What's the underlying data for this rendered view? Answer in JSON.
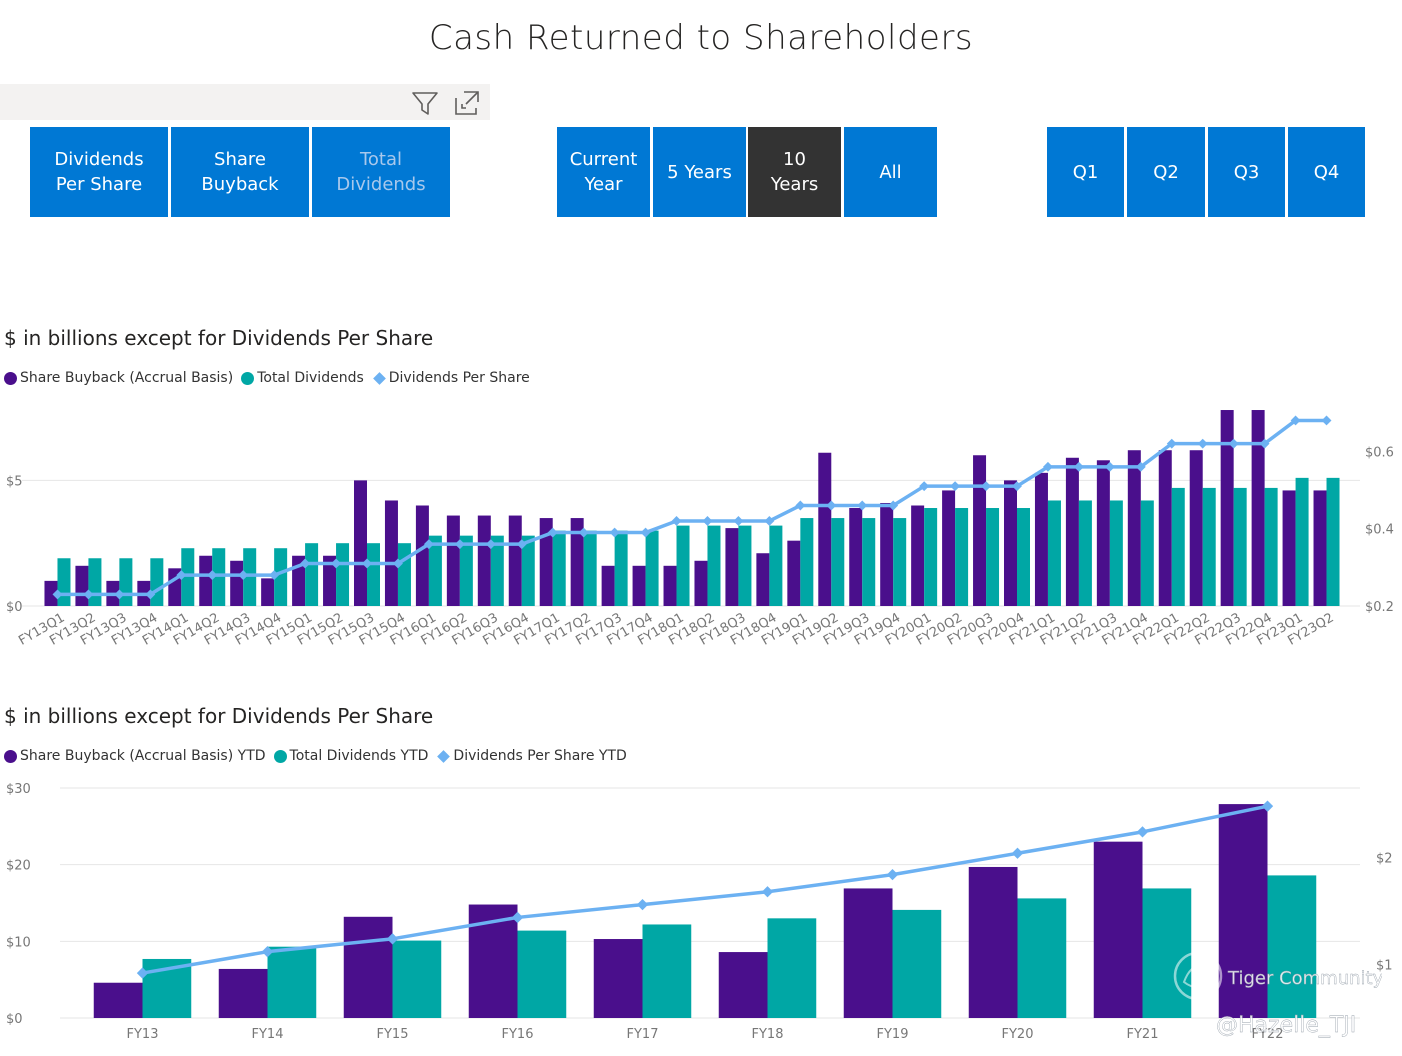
{
  "title": "Cash Returned to Shareholders",
  "colors": {
    "buyback": "#4a0f8c",
    "dividends": "#00a7a5",
    "dps": "#6cb1f2",
    "button": "#0078d4",
    "selected": "#333333"
  },
  "icons": {
    "filter": "filter-icon",
    "focus": "focus-mode-icon"
  },
  "metric_buttons": [
    {
      "label": "Dividends\nPer Share",
      "dim": false
    },
    {
      "label": "Share\nBuyback",
      "dim": false
    },
    {
      "label": "Total\nDividends",
      "dim": true
    }
  ],
  "period_buttons": [
    {
      "label": "Current\nYear",
      "selected": false
    },
    {
      "label": "5 Years",
      "selected": false
    },
    {
      "label": "10\nYears",
      "selected": true
    },
    {
      "label": "All",
      "selected": false
    }
  ],
  "quarter_buttons": [
    {
      "label": "Q1"
    },
    {
      "label": "Q2"
    },
    {
      "label": "Q3"
    },
    {
      "label": "Q4"
    }
  ],
  "watermark": {
    "brand": "Tiger Community",
    "user": "@Hazelle_TJI"
  },
  "chart_data": [
    {
      "type": "bar",
      "title": "$ in billions except for Dividends Per Share",
      "legend": [
        "Share Buyback (Accrual Basis)",
        "Total Dividends",
        "Dividends Per Share"
      ],
      "categories": [
        "FY13Q1",
        "FY13Q2",
        "FY13Q3",
        "FY13Q4",
        "FY14Q1",
        "FY14Q2",
        "FY14Q3",
        "FY14Q4",
        "FY15Q1",
        "FY15Q2",
        "FY15Q3",
        "FY15Q4",
        "FY16Q1",
        "FY16Q2",
        "FY16Q3",
        "FY16Q4",
        "FY17Q1",
        "FY17Q2",
        "FY17Q3",
        "FY17Q4",
        "FY18Q1",
        "FY18Q2",
        "FY18Q3",
        "FY18Q4",
        "FY19Q1",
        "FY19Q2",
        "FY19Q3",
        "FY19Q4",
        "FY20Q1",
        "FY20Q2",
        "FY20Q3",
        "FY20Q4",
        "FY21Q1",
        "FY21Q2",
        "FY21Q3",
        "FY21Q4",
        "FY22Q1",
        "FY22Q2",
        "FY22Q3",
        "FY22Q4",
        "FY23Q1",
        "FY23Q2"
      ],
      "series": [
        {
          "name": "Share Buyback (Accrual Basis)",
          "axis": "left",
          "values": [
            1.0,
            1.6,
            1.0,
            1.0,
            1.5,
            2.0,
            1.8,
            1.1,
            2.0,
            2.0,
            5.0,
            4.2,
            4.0,
            3.6,
            3.6,
            3.6,
            3.5,
            3.5,
            1.6,
            1.6,
            1.6,
            1.8,
            3.1,
            2.1,
            2.6,
            6.1,
            3.9,
            4.1,
            4.0,
            4.6,
            6.0,
            5.0,
            5.3,
            5.9,
            5.8,
            6.2,
            6.2,
            6.2,
            7.8,
            7.8,
            4.6,
            4.6
          ]
        },
        {
          "name": "Total Dividends",
          "axis": "left",
          "values": [
            1.9,
            1.9,
            1.9,
            1.9,
            2.3,
            2.3,
            2.3,
            2.3,
            2.5,
            2.5,
            2.5,
            2.5,
            2.8,
            2.8,
            2.8,
            2.8,
            3.0,
            3.0,
            3.0,
            3.0,
            3.2,
            3.2,
            3.2,
            3.2,
            3.5,
            3.5,
            3.5,
            3.5,
            3.9,
            3.9,
            3.9,
            3.9,
            4.2,
            4.2,
            4.2,
            4.2,
            4.7,
            4.7,
            4.7,
            4.7,
            5.1,
            5.1
          ]
        },
        {
          "name": "Dividends Per Share",
          "axis": "right",
          "values": [
            0.23,
            0.23,
            0.23,
            0.23,
            0.28,
            0.28,
            0.28,
            0.28,
            0.31,
            0.31,
            0.31,
            0.31,
            0.36,
            0.36,
            0.36,
            0.36,
            0.39,
            0.39,
            0.39,
            0.39,
            0.42,
            0.42,
            0.42,
            0.42,
            0.46,
            0.46,
            0.46,
            0.46,
            0.51,
            0.51,
            0.51,
            0.51,
            0.56,
            0.56,
            0.56,
            0.56,
            0.62,
            0.62,
            0.62,
            0.62,
            0.68,
            0.68
          ]
        }
      ],
      "ylim_left": [
        0,
        8.0
      ],
      "yticks_left": [
        0,
        5
      ],
      "yticklabels_left": [
        "$0",
        "$5"
      ],
      "ylim_right": [
        0.2,
        0.72
      ],
      "yticks_right": [
        0.2,
        0.4,
        0.6
      ],
      "yticklabels_right": [
        "$0.2",
        "$0.4",
        "$0.6"
      ]
    },
    {
      "type": "bar",
      "title": "$ in billions except for Dividends Per Share",
      "legend": [
        "Share Buyback (Accrual Basis) YTD",
        "Total Dividends YTD",
        "Dividends Per Share YTD"
      ],
      "categories": [
        "FY13",
        "FY14",
        "FY15",
        "FY16",
        "FY17",
        "FY18",
        "FY19",
        "FY20",
        "FY21",
        "FY22"
      ],
      "series": [
        {
          "name": "Share Buyback (Accrual Basis) YTD",
          "axis": "left",
          "values": [
            4.6,
            6.4,
            13.2,
            14.8,
            10.3,
            8.6,
            16.9,
            19.7,
            23.0,
            27.9
          ]
        },
        {
          "name": "Total Dividends YTD",
          "axis": "left",
          "values": [
            7.7,
            9.3,
            10.1,
            11.4,
            12.2,
            13.0,
            14.1,
            15.6,
            16.9,
            18.6
          ]
        },
        {
          "name": "Dividends Per Share YTD",
          "axis": "right",
          "values": [
            0.92,
            1.12,
            1.24,
            1.44,
            1.56,
            1.68,
            1.84,
            2.04,
            2.24,
            2.48
          ]
        }
      ],
      "ylim_left": [
        0,
        30
      ],
      "yticks_left": [
        0,
        10,
        20,
        30
      ],
      "yticklabels_left": [
        "$0",
        "$10",
        "$20",
        "$30"
      ],
      "ylim_right": [
        0.5,
        2.65
      ],
      "yticks_right": [
        1,
        2
      ],
      "yticklabels_right": [
        "$1",
        "$2"
      ]
    }
  ]
}
